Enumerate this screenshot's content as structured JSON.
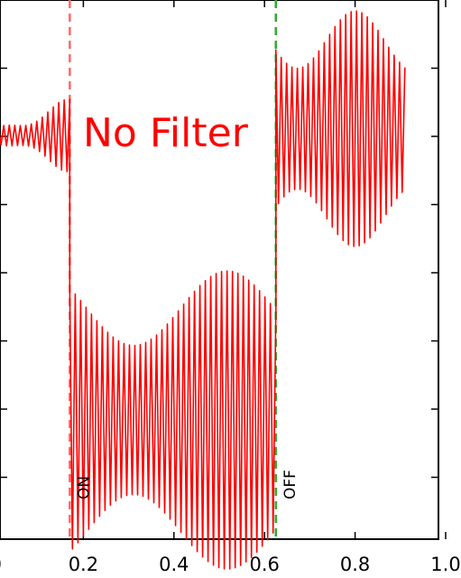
{
  "chart_data": {
    "type": "line",
    "title": "",
    "xlabel": "",
    "ylabel": "",
    "xlim": [
      0.0,
      1.0
    ],
    "x_ticks": [
      0.0,
      0.2,
      0.4,
      0.6,
      0.8,
      1.0
    ],
    "x_tick_labels": [
      ".0",
      "0.2",
      "0.4",
      "0.6",
      "0.8",
      "1.0"
    ],
    "grid": false,
    "annotation": "No Filter",
    "series_color": "#ff0000",
    "markers": [
      {
        "label": "ON",
        "x": 0.17,
        "color": "#ff6666"
      },
      {
        "label": "OFF",
        "x": 0.625,
        "color": "#33aa33"
      }
    ],
    "segments": [
      {
        "x_start": 0.0,
        "x_end": 0.17,
        "level": 0.5,
        "amp_start": 0.05,
        "amp_end": 0.28,
        "period": 0.012
      },
      {
        "x_start": 0.17,
        "x_end": 0.625,
        "level": -1.6,
        "amp_start": 1.1,
        "amp_end": 1.1,
        "period": 0.012
      },
      {
        "x_start": 0.625,
        "x_end": 0.91,
        "level": 0.55,
        "amp_start": 0.9,
        "amp_end": 0.85,
        "period": 0.012
      }
    ]
  }
}
